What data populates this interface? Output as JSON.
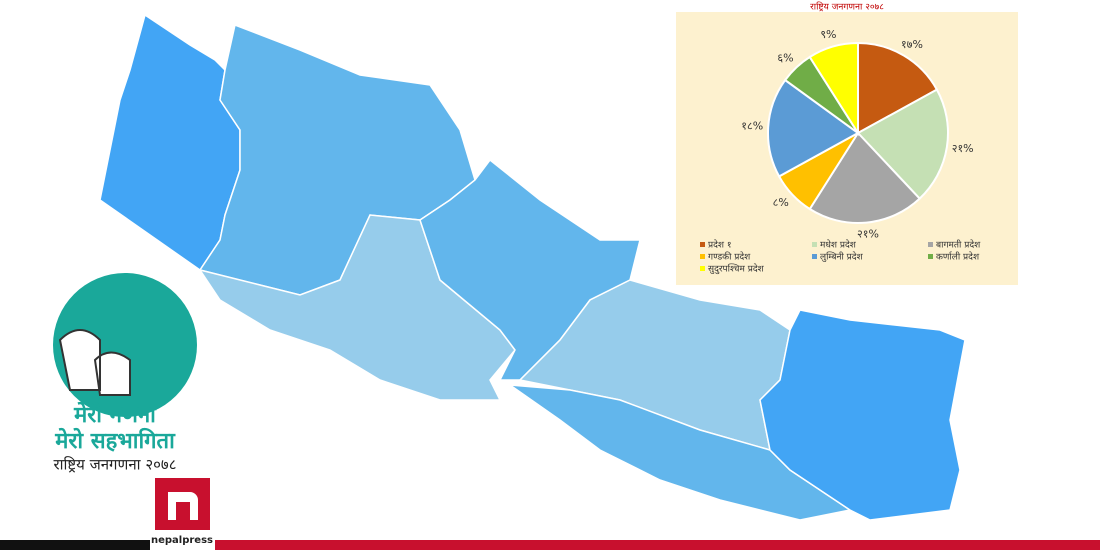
{
  "chart_data": {
    "type": "pie",
    "title": "राष्ट्रिय जनगणना २०७८",
    "categories": [
      "प्रदेश १",
      "मधेश प्रदेश",
      "बागमती प्रदेश",
      "गण्डकी प्रदेश",
      "लुम्बिनी प्रदेश",
      "कर्णाली प्रदेश",
      "सुदुरपश्चिम प्रदेश"
    ],
    "values": [
      17,
      21,
      21,
      8,
      18,
      6,
      9
    ],
    "value_labels": [
      "१७%",
      "२१%",
      "२१%",
      "८%",
      "१८%",
      "६%",
      "९%"
    ],
    "colors": [
      "#c55a11",
      "#c5e0b4",
      "#a5a5a5",
      "#ffc000",
      "#5b9bd5",
      "#70ad47",
      "#ffff00"
    ]
  },
  "logo": {
    "line1": "मेरो गणना",
    "line2": "मेरो सहभागिता",
    "line3": "राष्ट्रिय जनगणना २०७८"
  },
  "brand": "nepalpress"
}
